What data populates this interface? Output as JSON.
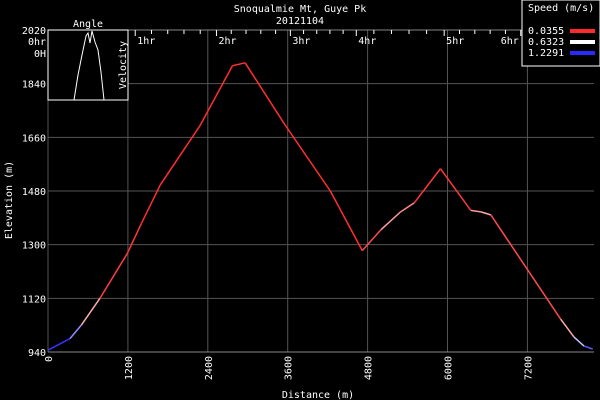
{
  "chart_data": {
    "type": "line",
    "title": "Snoqualmie Mt, Guye Pk",
    "subtitle": "20121104",
    "xlabel": "Distance (m)",
    "ylabel": "Elevation (m)",
    "xlim": [
      0,
      8200
    ],
    "ylim": [
      940,
      2020
    ],
    "x_ticks": [
      0,
      1200,
      2400,
      3600,
      4800,
      6000,
      7200
    ],
    "y_ticks": [
      940,
      1120,
      1300,
      1480,
      1660,
      1840,
      2020
    ],
    "grid": true,
    "top_axis_ticks": [
      {
        "label": "0hr",
        "distance": 0
      },
      {
        "label": "1hr",
        "distance": 1310
      },
      {
        "label": "2hr",
        "distance": 2530
      },
      {
        "label": "3hr",
        "distance": 3640
      },
      {
        "label": "4hr",
        "distance": 4630
      },
      {
        "label": "5hr",
        "distance": 5950
      },
      {
        "label": "6hr",
        "distance": 7100
      }
    ],
    "series": [
      {
        "points": [
          [
            0,
            946,
            1.2
          ],
          [
            330,
            985,
            1.2
          ],
          [
            500,
            1030,
            0.7
          ],
          [
            780,
            1120,
            0.1
          ],
          [
            1190,
            1270,
            0.1
          ],
          [
            1400,
            1370,
            0.05
          ],
          [
            1685,
            1500,
            0.05
          ],
          [
            2285,
            1700,
            0.05
          ],
          [
            2770,
            1900,
            0.05
          ],
          [
            2960,
            1910,
            0.05
          ],
          [
            3565,
            1700,
            0.05
          ],
          [
            4240,
            1480,
            0.05
          ],
          [
            4720,
            1280,
            0.05
          ],
          [
            5000,
            1350,
            0.2
          ],
          [
            5295,
            1410,
            0.5
          ],
          [
            5500,
            1440,
            0.1
          ],
          [
            5895,
            1555,
            0.05
          ],
          [
            6350,
            1415,
            0.1
          ],
          [
            6500,
            1410,
            0.6
          ],
          [
            6650,
            1400,
            0.2
          ],
          [
            7100,
            1250,
            0.05
          ],
          [
            7700,
            1050,
            0.2
          ],
          [
            7900,
            990,
            0.6
          ],
          [
            8050,
            960,
            1.0
          ],
          [
            8180,
            950,
            1.2
          ]
        ]
      }
    ],
    "legend": {
      "title": "Speed (m/s)",
      "placement": "top-right",
      "entries": [
        {
          "label": "0.0355",
          "color": "#ff2a2a"
        },
        {
          "label": "0.6323",
          "color": "#ffffff"
        },
        {
          "label": "1.2291",
          "color": "#2a2aff"
        }
      ]
    },
    "inset": {
      "title": "Angle",
      "ylabel": "Velocity",
      "top_left_label": "0H"
    }
  }
}
